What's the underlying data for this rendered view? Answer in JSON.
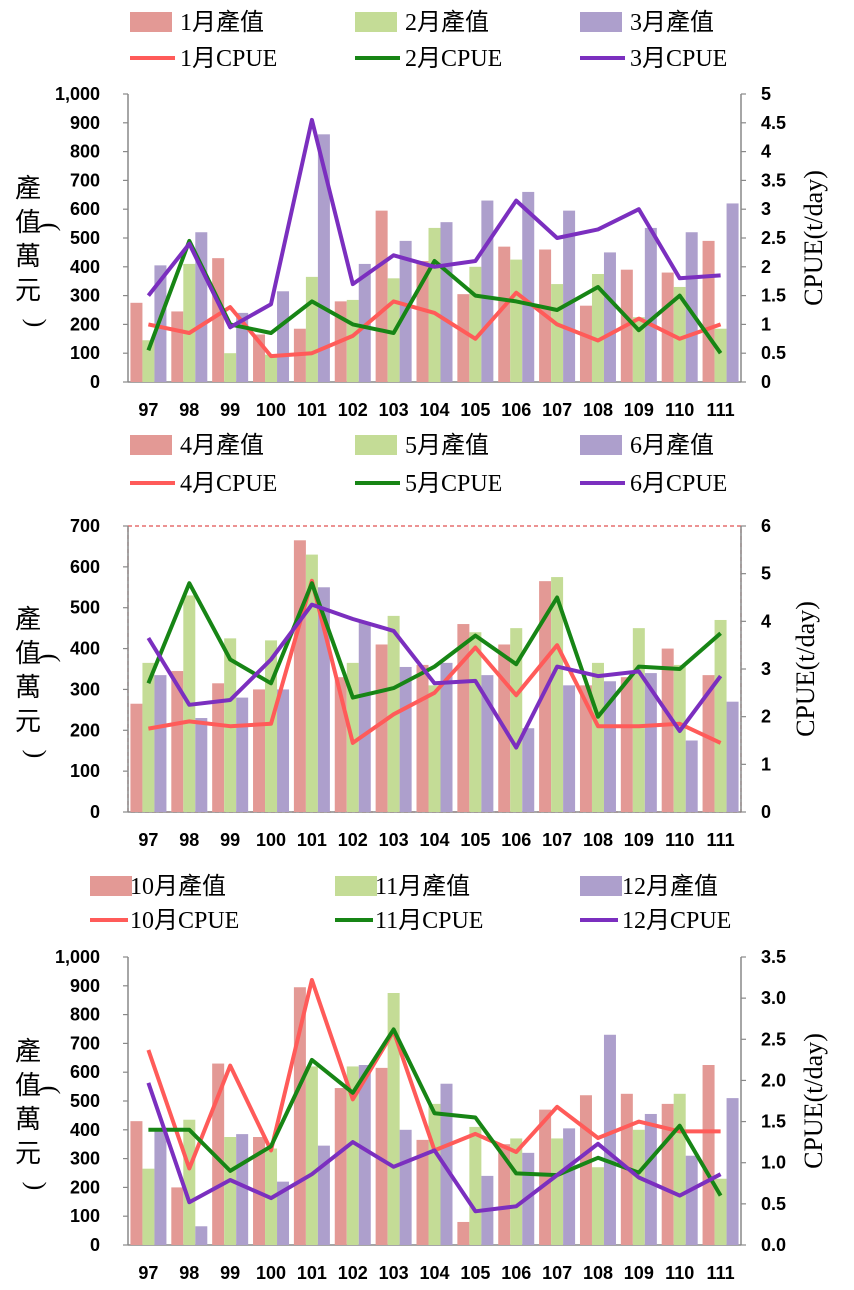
{
  "chart_data": [
    {
      "type": "bar",
      "categories": [
        "97",
        "98",
        "99",
        "100",
        "101",
        "102",
        "103",
        "104",
        "105",
        "106",
        "107",
        "108",
        "109",
        "110",
        "111"
      ],
      "ylabel": "產值(萬元)",
      "y2label": "CPUE(t/day)",
      "ylim": [
        0,
        1000
      ],
      "y2lim": [
        0,
        5
      ],
      "yticks": [
        "0",
        "100",
        "200",
        "300",
        "400",
        "500",
        "600",
        "700",
        "800",
        "900",
        "1,000"
      ],
      "y2ticks": [
        "0",
        "0.5",
        "1",
        "1.5",
        "2",
        "2.5",
        "3",
        "3.5",
        "4",
        "4.5",
        "5"
      ],
      "bar_series": [
        {
          "name": "1月產值",
          "color": "#e39995",
          "values": [
            275,
            245,
            430,
            165,
            185,
            280,
            595,
            420,
            305,
            470,
            460,
            265,
            390,
            380,
            490
          ]
        },
        {
          "name": "2月產值",
          "color": "#c4dc96",
          "values": [
            145,
            410,
            100,
            95,
            365,
            285,
            360,
            535,
            400,
            425,
            340,
            375,
            225,
            330,
            185
          ]
        },
        {
          "name": "3月產值",
          "color": "#ad9fcc",
          "values": [
            405,
            520,
            240,
            315,
            860,
            410,
            490,
            555,
            630,
            660,
            595,
            450,
            535,
            520,
            620
          ]
        }
      ],
      "line_series": [
        {
          "name": "1月CPUE",
          "color": "#ff5b59",
          "values": [
            1.0,
            0.85,
            1.3,
            0.45,
            0.5,
            0.8,
            1.4,
            1.2,
            0.75,
            1.55,
            1.0,
            0.72,
            1.1,
            0.75,
            1.0
          ]
        },
        {
          "name": "2月CPUE",
          "color": "#178515",
          "values": [
            0.55,
            2.45,
            1.0,
            0.85,
            1.4,
            1.0,
            0.85,
            2.1,
            1.5,
            1.4,
            1.25,
            1.65,
            0.9,
            1.5,
            0.5
          ]
        },
        {
          "name": "3月CPUE",
          "color": "#7b2fbf",
          "values": [
            1.5,
            2.4,
            0.95,
            1.35,
            4.55,
            1.7,
            2.2,
            2.0,
            2.1,
            3.15,
            2.5,
            2.65,
            3.0,
            1.8,
            1.85
          ]
        }
      ]
    },
    {
      "type": "bar",
      "categories": [
        "97",
        "98",
        "99",
        "100",
        "101",
        "102",
        "103",
        "104",
        "105",
        "106",
        "107",
        "108",
        "109",
        "110",
        "111"
      ],
      "ylabel": "產值(萬元)",
      "y2label": "CPUE(t/day)",
      "ylim": [
        0,
        700
      ],
      "y2lim": [
        0,
        6
      ],
      "yticks": [
        "0",
        "100",
        "200",
        "300",
        "400",
        "500",
        "600",
        "700"
      ],
      "y2ticks": [
        "0",
        "1",
        "2",
        "3",
        "4",
        "5",
        "6"
      ],
      "bar_series": [
        {
          "name": "4月產值",
          "color": "#e39995",
          "values": [
            265,
            345,
            315,
            300,
            665,
            330,
            410,
            360,
            460,
            410,
            565,
            310,
            330,
            400,
            335
          ]
        },
        {
          "name": "5月產值",
          "color": "#c4dc96",
          "values": [
            365,
            530,
            425,
            420,
            630,
            365,
            480,
            310,
            440,
            450,
            575,
            365,
            450,
            360,
            470
          ]
        },
        {
          "name": "6月產值",
          "color": "#ad9fcc",
          "values": [
            335,
            230,
            280,
            300,
            550,
            465,
            355,
            365,
            335,
            205,
            310,
            320,
            340,
            175,
            270
          ]
        }
      ],
      "line_series": [
        {
          "name": "4月CPUE",
          "color": "#ff5b59",
          "values": [
            1.75,
            1.9,
            1.8,
            1.85,
            4.85,
            1.45,
            2.05,
            2.5,
            3.45,
            2.45,
            3.5,
            1.8,
            1.8,
            1.85,
            1.45
          ]
        },
        {
          "name": "5月CPUE",
          "color": "#178515",
          "values": [
            2.7,
            4.8,
            3.2,
            2.7,
            4.8,
            2.4,
            2.6,
            3.05,
            3.7,
            3.1,
            4.5,
            2.0,
            3.05,
            3.0,
            3.75
          ]
        },
        {
          "name": "6月CPUE",
          "color": "#7b2fbf",
          "values": [
            3.65,
            2.25,
            2.35,
            3.2,
            4.35,
            4.05,
            3.8,
            2.7,
            2.75,
            1.35,
            3.05,
            2.85,
            2.95,
            1.7,
            2.85
          ]
        }
      ]
    },
    {
      "type": "bar",
      "categories": [
        "97",
        "98",
        "99",
        "100",
        "101",
        "102",
        "103",
        "104",
        "105",
        "106",
        "107",
        "108",
        "109",
        "110",
        "111"
      ],
      "ylabel": "產值(萬元)",
      "y2label": "CPUE(t/day)",
      "ylim": [
        0,
        1000
      ],
      "y2lim": [
        0,
        3.5
      ],
      "yticks": [
        "0",
        "100",
        "200",
        "300",
        "400",
        "500",
        "600",
        "700",
        "800",
        "900",
        "1,000"
      ],
      "y2ticks": [
        "0.0",
        "0.5",
        "1.0",
        "1.5",
        "2.0",
        "2.5",
        "3.0",
        "3.5"
      ],
      "bar_series": [
        {
          "name": "10月產值",
          "color": "#e39995",
          "values": [
            430,
            200,
            630,
            375,
            895,
            545,
            615,
            365,
            80,
            350,
            470,
            520,
            525,
            490,
            625
          ]
        },
        {
          "name": "11月產值",
          "color": "#c4dc96",
          "values": [
            265,
            435,
            375,
            335,
            620,
            620,
            875,
            490,
            410,
            370,
            370,
            270,
            400,
            525,
            230
          ]
        },
        {
          "name": "12月產值",
          "color": "#ad9fcc",
          "values": [
            405,
            65,
            385,
            220,
            345,
            625,
            400,
            560,
            240,
            320,
            405,
            730,
            455,
            310,
            510
          ]
        }
      ],
      "line_series": [
        {
          "name": "10月CPUE",
          "color": "#ff5b59",
          "values": [
            2.37,
            0.93,
            2.18,
            1.15,
            3.22,
            1.77,
            2.6,
            1.15,
            1.35,
            1.13,
            1.68,
            1.3,
            1.5,
            1.38,
            1.38
          ]
        },
        {
          "name": "11月CPUE",
          "color": "#178515",
          "values": [
            1.4,
            1.4,
            0.9,
            1.2,
            2.25,
            1.85,
            2.62,
            1.6,
            1.55,
            0.87,
            0.85,
            1.06,
            0.88,
            1.45,
            0.6
          ]
        },
        {
          "name": "12月CPUE",
          "color": "#7b2fbf",
          "values": [
            1.97,
            0.52,
            0.79,
            0.57,
            0.86,
            1.25,
            0.95,
            1.15,
            0.41,
            0.47,
            0.85,
            1.23,
            0.82,
            0.6,
            0.86
          ]
        }
      ]
    }
  ]
}
